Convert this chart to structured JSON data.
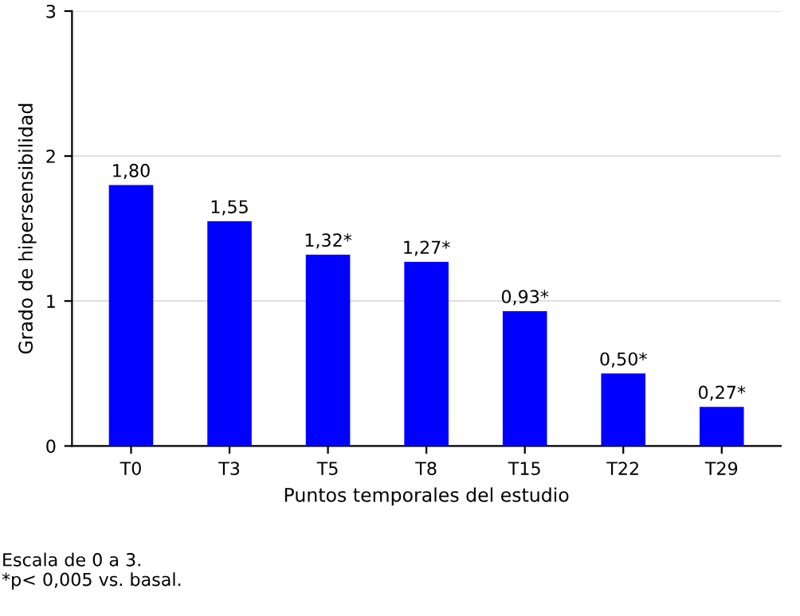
{
  "chart_data": {
    "type": "bar",
    "xlabel": "Puntos temporales del estudio",
    "ylabel": "Grado de hipersensibilidad",
    "categories": [
      "T0",
      "T3",
      "T5",
      "T8",
      "T15",
      "T22",
      "T29"
    ],
    "values": [
      1.8,
      1.55,
      1.32,
      1.27,
      0.93,
      0.5,
      0.27
    ],
    "value_labels": [
      "1,80",
      "1,55",
      "1,32*",
      "1,27*",
      "0,93*",
      "0,50*",
      "0,27*"
    ],
    "color": "#0000ff",
    "ylim": [
      0,
      3
    ],
    "yticks": [
      0,
      1,
      2,
      3
    ],
    "grid": "y",
    "annotations": [
      "Escala de 0 a 3.",
      "*p< 0,005 vs. basal."
    ]
  }
}
